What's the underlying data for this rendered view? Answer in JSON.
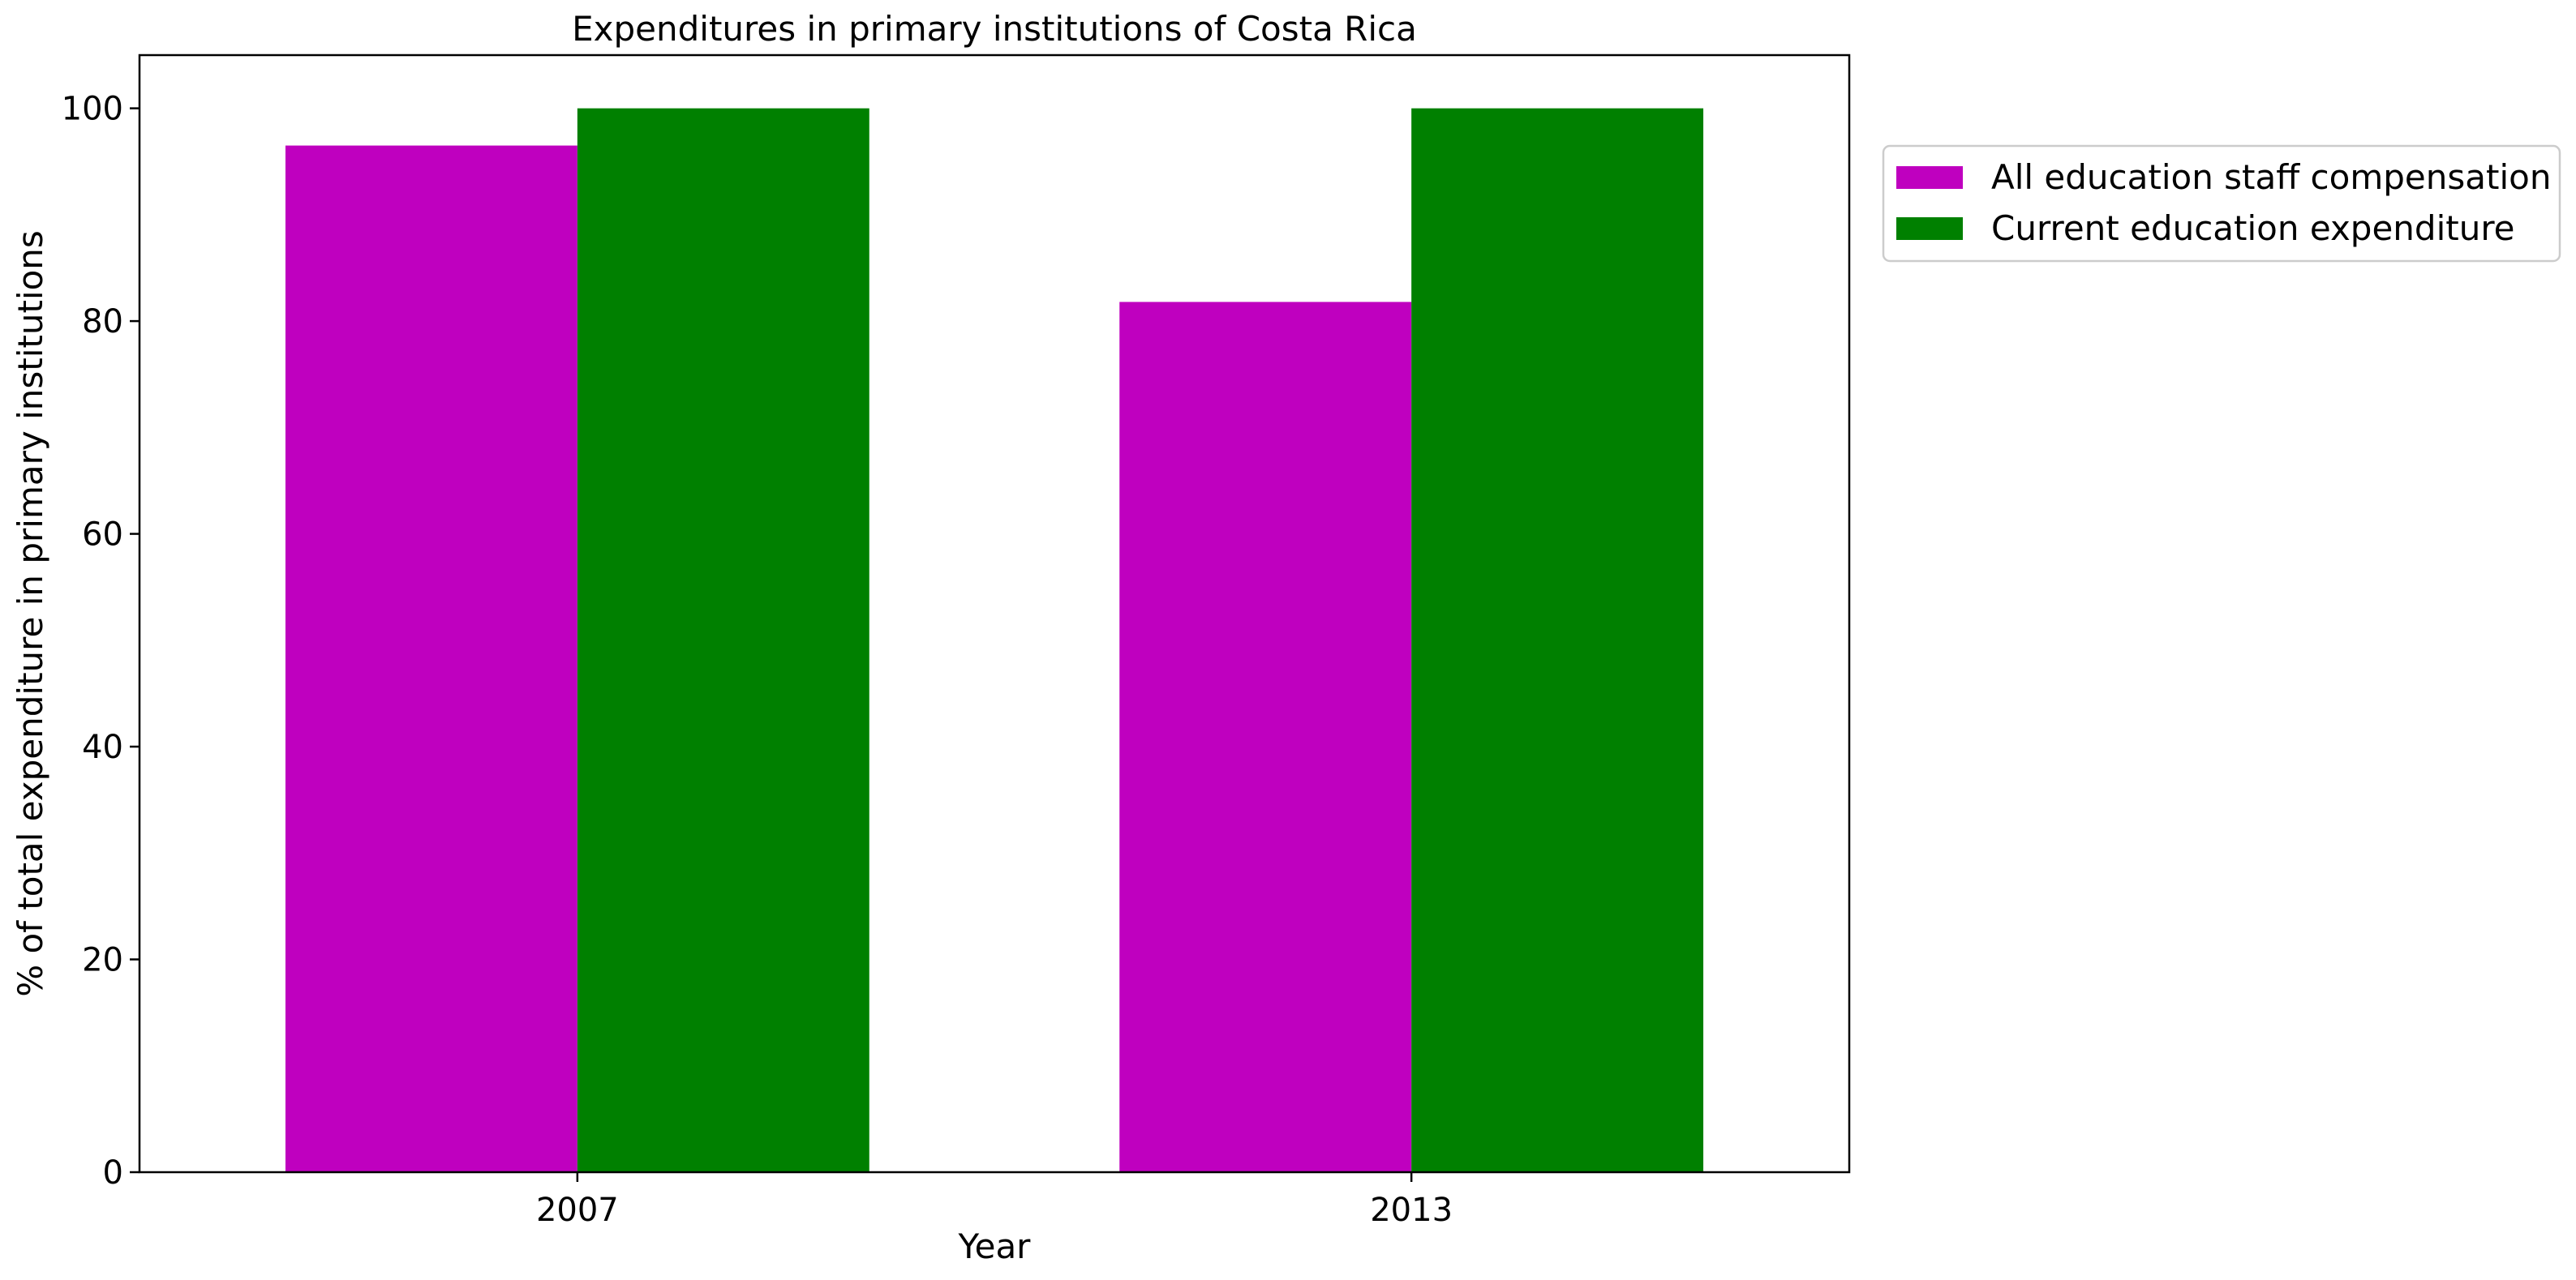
{
  "chart_data": {
    "type": "bar",
    "title": "Expenditures in primary institutions of Costa Rica",
    "xlabel": "Year",
    "ylabel": "% of total expenditure in primary institutions",
    "categories": [
      "2007",
      "2013"
    ],
    "series": [
      {
        "name": "All education staff compensation",
        "values": [
          96.5,
          81.8
        ],
        "color": "#bf00bf"
      },
      {
        "name": "Current education expenditure",
        "values": [
          100,
          100
        ],
        "color": "#008000"
      }
    ],
    "ylim": [
      0,
      105
    ],
    "yticks": [
      0,
      20,
      40,
      60,
      80,
      100
    ],
    "grid": false,
    "legend_position": "outside-right-top"
  }
}
